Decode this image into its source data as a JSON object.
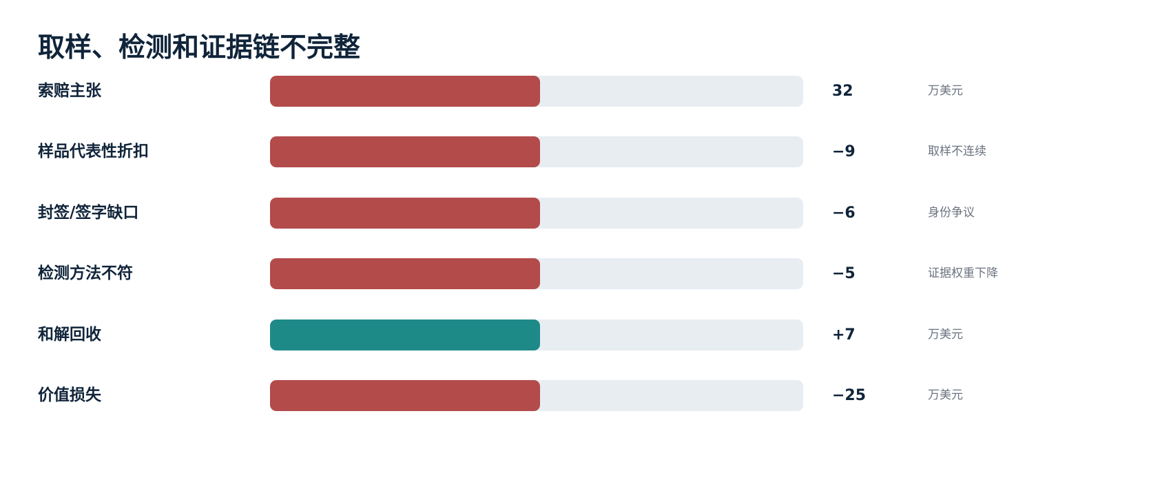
{
  "header": {
    "title": "取样、检测和证据链不完整"
  },
  "rows": [
    {
      "label": "索赔主张",
      "value": "32",
      "note": "万美元",
      "color": "#b34b4b"
    },
    {
      "label": "样品代表性折扣",
      "value": "−9",
      "note": "取样不连续",
      "color": "#b34b4b"
    },
    {
      "label": "封签/签字缺口",
      "value": "−6",
      "note": "身份争议",
      "color": "#b34b4b"
    },
    {
      "label": "检测方法不符",
      "value": "−5",
      "note": "证据权重下降",
      "color": "#b34b4b"
    },
    {
      "label": "和解回收",
      "value": "+7",
      "note": "万美元",
      "color": "#1e8a88"
    },
    {
      "label": "价值损失",
      "value": "−25",
      "note": "万美元",
      "color": "#b34b4b"
    }
  ]
}
